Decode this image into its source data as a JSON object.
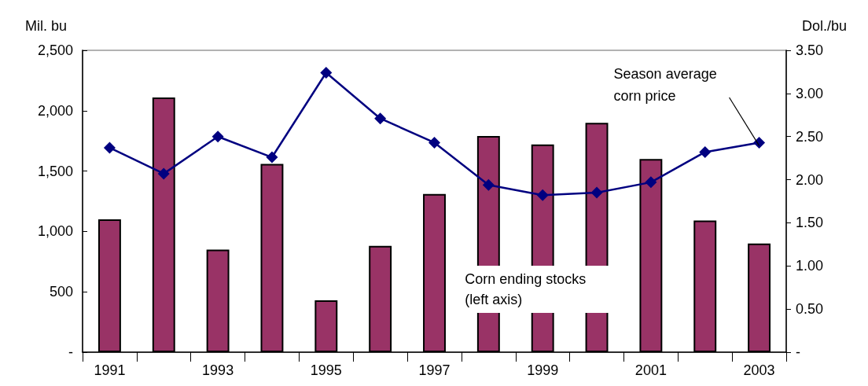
{
  "chart_data": {
    "type": "bar",
    "ylabel": "Mil. bu",
    "y2label": "Dol./bu",
    "categories": [
      "1991",
      null,
      "1993",
      null,
      "1995",
      null,
      "1997",
      null,
      "1999",
      null,
      "2001",
      null,
      "2003"
    ],
    "series": [
      {
        "name": "Corn ending stocks (left axis)",
        "color": "#993366",
        "values": [
          1100,
          2110,
          850,
          1560,
          430,
          880,
          1310,
          1790,
          1720,
          1900,
          1600,
          1090,
          900
        ]
      },
      {
        "name": "Season average corn price",
        "type": "line",
        "axis": "y2",
        "color": "#000080",
        "values": [
          2.37,
          2.07,
          2.5,
          2.26,
          3.24,
          2.71,
          2.43,
          1.94,
          1.82,
          1.85,
          1.97,
          2.32,
          2.43
        ]
      }
    ],
    "ylim": [
      0,
      2500
    ],
    "yticks": [
      {
        "value": 0,
        "label": "-"
      },
      500,
      {
        "value": 1000,
        "label": "1,000"
      },
      {
        "value": 1500,
        "label": "1,500"
      },
      {
        "value": 2000,
        "label": "2,000"
      },
      {
        "value": 2500,
        "label": "2,500"
      }
    ],
    "y2lim": [
      0,
      3.5
    ],
    "y2ticks": [
      {
        "value": 0,
        "label": "-"
      },
      {
        "value": 0.5,
        "label": "0.50"
      },
      {
        "value": 1,
        "label": "1.00"
      },
      {
        "value": 1.5,
        "label": "1.50"
      },
      {
        "value": 2,
        "label": "2.00"
      },
      {
        "value": 2.5,
        "label": "2.50"
      },
      {
        "value": 3,
        "label": "3.00"
      },
      {
        "value": 3.5,
        "label": "3.50"
      }
    ],
    "grid": false,
    "legend": false,
    "marker": "diamond",
    "line_style": "solid"
  }
}
